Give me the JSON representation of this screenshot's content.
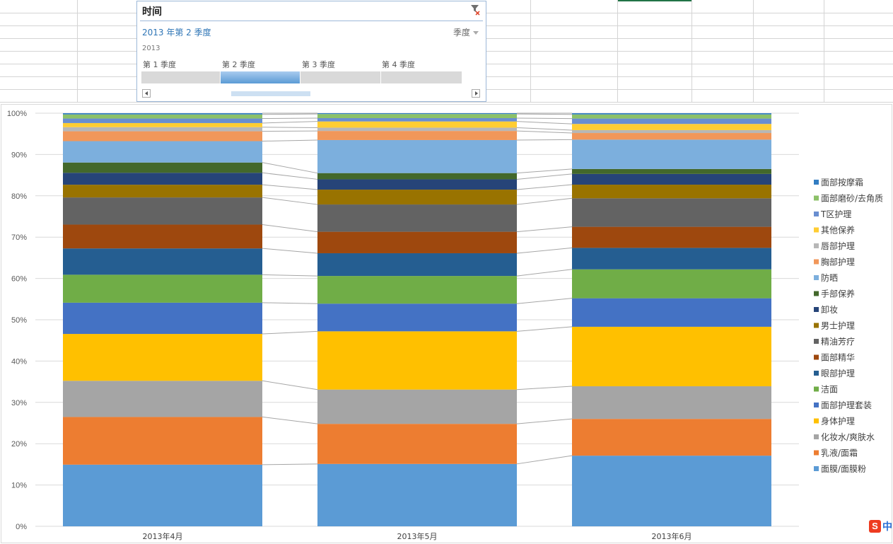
{
  "slicer": {
    "title": "时间",
    "selection": "2013 年第 2 季度",
    "level": "季度",
    "year": "2013",
    "quarters": [
      {
        "label": "第 1 季度",
        "selected": false
      },
      {
        "label": "第 2 季度",
        "selected": true
      },
      {
        "label": "第 3 季度",
        "selected": false
      },
      {
        "label": "第 4 季度",
        "selected": false
      }
    ],
    "icons": {
      "clear": "filter-clear-icon",
      "scroll_left": "scroll-left-icon",
      "scroll_right": "scroll-right-icon"
    }
  },
  "watermark": {
    "logo_letter": "S",
    "text": "中"
  },
  "chart_data": {
    "type": "bar",
    "stacked": "100%",
    "categories": [
      "2013年4月",
      "2013年5月",
      "2013年6月"
    ],
    "ylim": [
      0,
      100
    ],
    "yticks": [
      "0%",
      "10%",
      "20%",
      "30%",
      "40%",
      "50%",
      "60%",
      "70%",
      "80%",
      "90%",
      "100%"
    ],
    "grid": true,
    "series_lines": true,
    "legend_position": "right",
    "series": [
      {
        "name": "面膜/面膜粉",
        "color": "#5b9bd5",
        "values": [
          15.0,
          15.1,
          17.1
        ]
      },
      {
        "name": "乳液/面霜",
        "color": "#ed7d31",
        "values": [
          11.6,
          9.7,
          8.9
        ]
      },
      {
        "name": "化妆水/爽肤水",
        "color": "#a5a5a5",
        "values": [
          8.8,
          8.3,
          7.9
        ]
      },
      {
        "name": "身体护理",
        "color": "#ffc000",
        "values": [
          11.4,
          14.1,
          14.4
        ]
      },
      {
        "name": "面部护理套装",
        "color": "#4472c4",
        "values": [
          7.6,
          6.7,
          6.9
        ]
      },
      {
        "name": "洁面",
        "color": "#70ad47",
        "values": [
          6.8,
          6.7,
          7.0
        ]
      },
      {
        "name": "眼部护理",
        "color": "#255e91",
        "values": [
          6.4,
          5.5,
          5.2
        ]
      },
      {
        "name": "面部精华",
        "color": "#9e480e",
        "values": [
          5.8,
          5.2,
          5.1
        ]
      },
      {
        "name": "精油芳疗",
        "color": "#636363",
        "values": [
          6.6,
          6.6,
          6.9
        ]
      },
      {
        "name": "男士护理",
        "color": "#997300",
        "values": [
          3.1,
          3.6,
          3.3
        ]
      },
      {
        "name": "卸妆",
        "color": "#264478",
        "values": [
          2.9,
          2.5,
          2.6
        ]
      },
      {
        "name": "手部保养",
        "color": "#43682b",
        "values": [
          2.5,
          1.5,
          1.2
        ]
      },
      {
        "name": "防晒",
        "color": "#7cafdd",
        "values": [
          5.2,
          8.0,
          7.1
        ]
      },
      {
        "name": "胸部护理",
        "color": "#f1975a",
        "values": [
          2.4,
          2.2,
          1.6
        ]
      },
      {
        "name": "唇部护理",
        "color": "#b7b7b7",
        "values": [
          1.0,
          0.8,
          0.7
        ]
      },
      {
        "name": "其他保养",
        "color": "#ffcd33",
        "values": [
          1.0,
          1.5,
          1.5
        ]
      },
      {
        "name": "T区护理",
        "color": "#698ed0",
        "values": [
          1.1,
          0.8,
          1.3
        ]
      },
      {
        "name": "面部磨砂/去角质",
        "color": "#8cc168",
        "values": [
          1.0,
          1.0,
          1.0
        ]
      },
      {
        "name": "面部按摩霜",
        "color": "#327dc2",
        "values": [
          0.3,
          0.2,
          0.3
        ]
      }
    ]
  }
}
